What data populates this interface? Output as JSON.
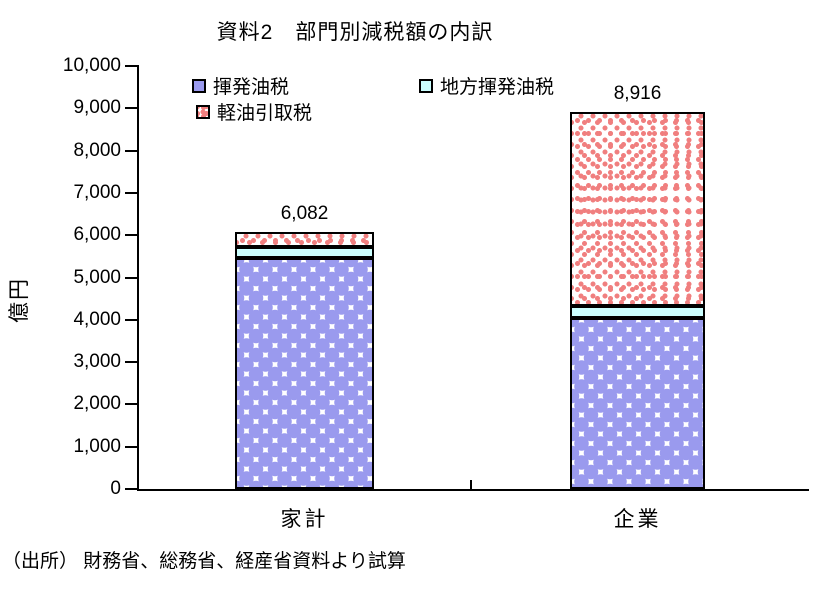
{
  "chart_data": {
    "type": "bar",
    "stacked": true,
    "title": "資料2　部門別減税額の内訳",
    "ylabel": "億円",
    "categories": [
      "家計",
      "企業"
    ],
    "series": [
      {
        "id": "gasoline-tax",
        "name": "揮発油税",
        "values": [
          5450,
          4050
        ],
        "fill": "blue-diamond-pattern",
        "color": "#9a9aee"
      },
      {
        "id": "local-gasoline-tax",
        "name": "地方揮発油税",
        "values": [
          260,
          280
        ],
        "fill": "solid-cyan",
        "color": "#ccffff"
      },
      {
        "id": "diesel-tax",
        "name": "軽油引取税",
        "values": [
          372,
          4586
        ],
        "fill": "red-dot-pattern",
        "color": "#f07f7f"
      }
    ],
    "totals": [
      6082,
      8916
    ],
    "total_labels": [
      "6,082",
      "8,916"
    ],
    "ylim": [
      0,
      10000
    ],
    "ytick_step": 1000,
    "yticks": [
      "0",
      "1,000",
      "2,000",
      "3,000",
      "4,000",
      "5,000",
      "6,000",
      "7,000",
      "8,000",
      "9,000",
      "10,000"
    ],
    "grid": false,
    "legend_position": "top-inside",
    "border_color": "#000000"
  },
  "source_note": "（出所） 財務省、総務省、経産省資料より試算"
}
